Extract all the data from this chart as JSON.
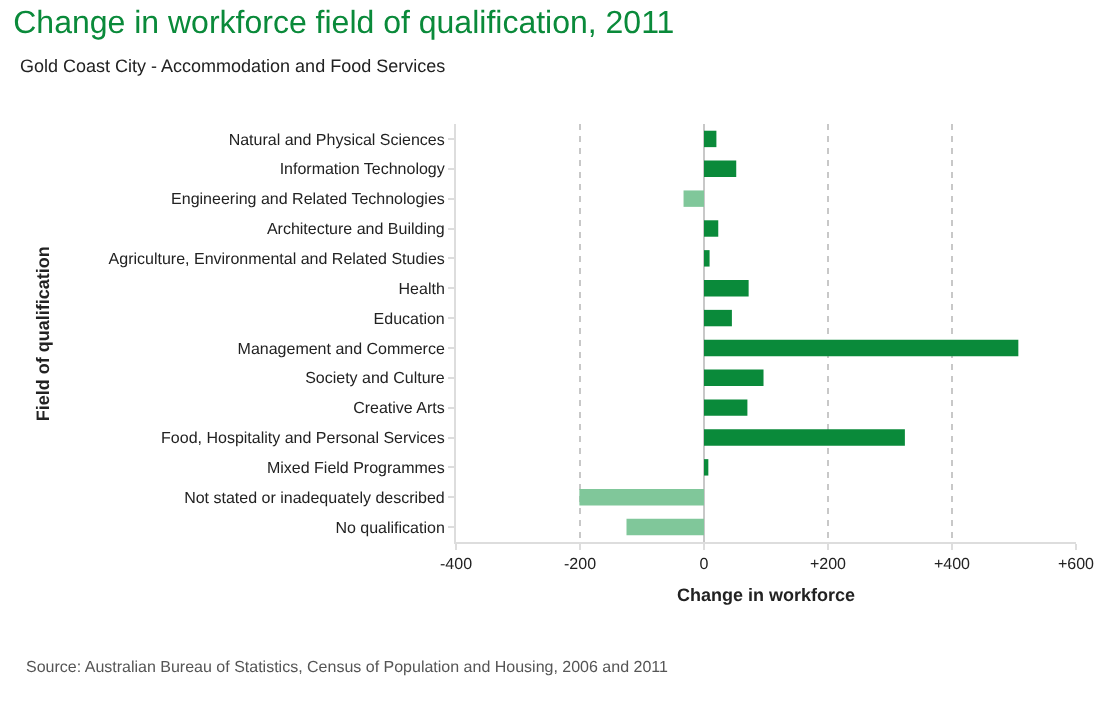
{
  "chart_data": {
    "type": "bar",
    "orientation": "horizontal",
    "title": "Change in workforce field of qualification, 2011",
    "subtitle": "Gold Coast City - Accommodation and Food Services",
    "xlabel": "Change in workforce",
    "ylabel": "Field of qualification",
    "categories": [
      "Natural and Physical Sciences",
      "Information Technology",
      "Engineering and Related Technologies",
      "Architecture and Building",
      "Agriculture, Environmental and Related Studies",
      "Health",
      "Education",
      "Management and Commerce",
      "Society and Culture",
      "Creative Arts",
      "Food, Hospitality and Personal Services",
      "Mixed Field Programmes",
      "Not stated or inadequately described",
      "No qualification"
    ],
    "values": [
      20,
      52,
      -33,
      23,
      9,
      72,
      45,
      507,
      96,
      70,
      324,
      7,
      -201,
      -125
    ],
    "colors": [
      "#0a8a3a",
      "#0a8a3a",
      "#80c79a",
      "#0a8a3a",
      "#0a8a3a",
      "#0a8a3a",
      "#0a8a3a",
      "#0a8a3a",
      "#0a8a3a",
      "#0a8a3a",
      "#0a8a3a",
      "#0a8a3a",
      "#80c79a",
      "#80c79a"
    ],
    "xlim": [
      -400,
      600
    ],
    "xticks": [
      -400,
      -200,
      0,
      {
        "value": 200,
        "label": "+200"
      },
      {
        "value": 400,
        "label": "+400"
      },
      {
        "value": 600,
        "label": "+600"
      }
    ],
    "grid": "x",
    "annotations": [
      "Source: Australian Bureau of Statistics, Census of Population and Housing, 2006 and 2011"
    ]
  }
}
